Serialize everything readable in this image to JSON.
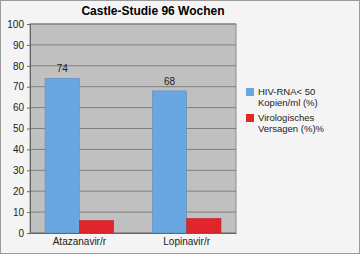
{
  "chart_data": {
    "type": "bar",
    "title": "Castle-Studie 96 Wochen",
    "categories": [
      "Atazanavir/r",
      "Lopinavir/r"
    ],
    "series": [
      {
        "name": "HIV-RNA< 50 Kopien/ml (%)",
        "color": "#6aa6e2",
        "values": [
          74,
          68
        ],
        "data_labels": true
      },
      {
        "name": "Virologisches Versagen (%)%",
        "color": "#e0262c",
        "values": [
          6,
          7
        ]
      }
    ],
    "ylim": [
      0,
      100
    ],
    "yticks": [
      0,
      10,
      20,
      30,
      40,
      50,
      60,
      70,
      80,
      90,
      100
    ],
    "grid": true,
    "legend": "right"
  }
}
